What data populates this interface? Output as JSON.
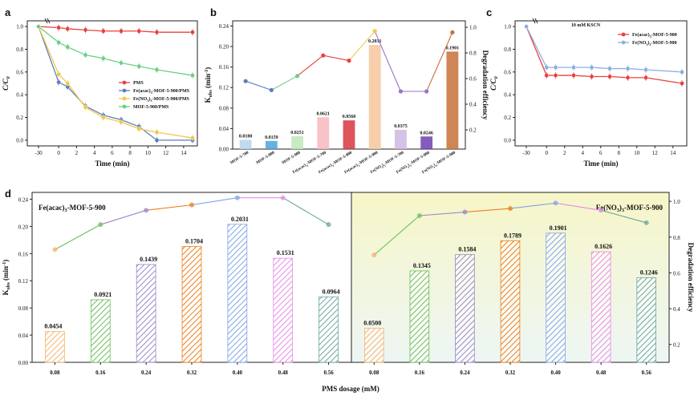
{
  "panels": {
    "a": {
      "letter": "a",
      "chart_data": {
        "type": "line",
        "xlabel": "Time (min)",
        "ylabel": "C/C0",
        "xticks": [
          "-30",
          "0",
          "2",
          "4",
          "6",
          "8",
          "10",
          "12",
          "14"
        ],
        "yticks": [
          "0.0",
          "0.2",
          "0.4",
          "0.6",
          "0.8",
          "1.0"
        ],
        "xlim": [
          -30,
          15
        ],
        "ylim": [
          -0.05,
          1.05
        ],
        "legend_position": "right-middle",
        "series": [
          {
            "name": "PMS",
            "color": "#e8413e",
            "x": [
              -30,
              0,
              1,
              3,
              5,
              7,
              9,
              11,
              15
            ],
            "y": [
              1.0,
              0.99,
              0.98,
              0.97,
              0.96,
              0.96,
              0.96,
              0.95,
              0.95
            ]
          },
          {
            "name": "Fe(acac)3-MOF-5-900/PMS",
            "color": "#5b7fbf",
            "x": [
              -30,
              0,
              1,
              3,
              5,
              7,
              9,
              11,
              15
            ],
            "y": [
              1.0,
              0.51,
              0.47,
              0.3,
              0.22,
              0.18,
              0.12,
              0.0,
              0.0
            ]
          },
          {
            "name": "Fe(NO3)3-MOF-5-900/PMS",
            "color": "#f2c84b",
            "x": [
              -30,
              0,
              1,
              3,
              5,
              7,
              9,
              11,
              15
            ],
            "y": [
              1.0,
              0.58,
              0.5,
              0.29,
              0.2,
              0.16,
              0.1,
              0.07,
              0.02
            ]
          },
          {
            "name": "MOF-5-900/PMS",
            "color": "#6ccf86",
            "x": [
              -30,
              0,
              1,
              3,
              5,
              7,
              9,
              11,
              15
            ],
            "y": [
              1.0,
              0.86,
              0.82,
              0.75,
              0.72,
              0.68,
              0.65,
              0.62,
              0.57
            ]
          }
        ]
      }
    },
    "b": {
      "letter": "b",
      "chart_data": {
        "type": "bar",
        "ylabel_left": "Kobs (min-1)",
        "ylabel_right": "Degradation efficiency",
        "yticks_left": [
          "0.00",
          "0.04",
          "0.08",
          "0.12",
          "0.16",
          "0.20",
          "0.24"
        ],
        "yticks_right": [
          "0.2",
          "0.4",
          "0.6",
          "0.8",
          "1.0"
        ],
        "ylim_left": [
          0,
          0.25
        ],
        "ylim_right": [
          0.05,
          1.05
        ],
        "categories": [
          "MOF-5-700",
          "MOF-5-800",
          "MOF-5-900",
          "Fe(acac)3-MOF-5-700",
          "Fe(acac)3-MOF-5-800",
          "Fe(acac)3-MOF-5-900",
          "Fe(NO3)3-MOF-5-700",
          "Fe(NO3)3-MOF-5-800",
          "Fe(NO3)3-MOF-5-900"
        ],
        "values": [
          0.018,
          0.0159,
          0.0251,
          0.0621,
          0.056,
          0.2031,
          0.0375,
          0.0246,
          0.1901
        ],
        "value_labels": [
          "0.0180",
          "0.0159",
          "0.0251",
          "0.0621",
          "0.0560",
          "0.2031",
          "0.0375",
          "0.0246",
          "0.1901"
        ],
        "bar_colors": [
          "#b7d3ec",
          "#4aa3d9",
          "#bfe8b9",
          "#f7b7bd",
          "#d8363e",
          "#f6c79c",
          "#cdb9e2",
          "#6e3fb0",
          "#c8703a"
        ],
        "efficiency": [
          0.58,
          0.51,
          0.62,
          0.78,
          0.74,
          0.97,
          0.5,
          0.5,
          0.96
        ],
        "efficiency_colors": [
          "#5b7fbf",
          "#5b7fbf",
          "#6ccf86",
          "#e8413e",
          "#e8413e",
          "#f2c84b",
          "#9a72c9",
          "#9a72c9",
          "#c8703a"
        ]
      }
    },
    "c": {
      "letter": "c",
      "chart_data": {
        "type": "line",
        "annotation": "10 mM KSCN",
        "xlabel": "Time (min)",
        "ylabel": "C/C0",
        "xticks": [
          "-30",
          "0",
          "2",
          "4",
          "6",
          "8",
          "10",
          "12",
          "14"
        ],
        "yticks": [
          "0.0",
          "0.2",
          "0.4",
          "0.6",
          "0.8",
          "1.0"
        ],
        "xlim": [
          -30,
          15
        ],
        "ylim": [
          -0.05,
          1.05
        ],
        "legend_position": "top-right",
        "series": [
          {
            "name": "Fe(acac)3-MOF-5-900",
            "color": "#e8413e",
            "x": [
              -30,
              0,
              1,
              3,
              5,
              7,
              9,
              11,
              15
            ],
            "y": [
              1.0,
              0.57,
              0.57,
              0.57,
              0.56,
              0.56,
              0.55,
              0.55,
              0.5
            ]
          },
          {
            "name": "Fe(NO3)3-MOF-5-900",
            "color": "#8ab0e0",
            "x": [
              -30,
              0,
              1,
              3,
              5,
              7,
              9,
              11,
              15
            ],
            "y": [
              1.0,
              0.64,
              0.64,
              0.64,
              0.64,
              0.63,
              0.63,
              0.62,
              0.6
            ]
          }
        ]
      }
    },
    "d": {
      "letter": "d",
      "chart_data": [
        {
          "type": "bar",
          "title": "Fe(acac)3-MOF-5-900",
          "categories": [
            "0.08",
            "0.16",
            "0.24",
            "0.32",
            "0.40",
            "0.48",
            "0.56"
          ],
          "values": [
            0.0454,
            0.0921,
            0.1439,
            0.1704,
            0.2031,
            0.1531,
            0.0964
          ],
          "value_labels": [
            "0.0454",
            "0.0921",
            "0.1439",
            "0.1704",
            "0.2031",
            "0.1531",
            "0.0964"
          ],
          "efficiency": [
            0.73,
            0.87,
            0.95,
            0.98,
            1.02,
            1.02,
            0.87
          ],
          "ylim": [
            0,
            0.25
          ]
        },
        {
          "type": "bar",
          "title": "Fe(NO3)3-MOF-5-900",
          "categories": [
            "0.08",
            "0.16",
            "0.24",
            "0.32",
            "0.40",
            "0.48",
            "0.56"
          ],
          "values": [
            0.05,
            0.1345,
            0.1584,
            0.1789,
            0.1901,
            0.1626,
            0.1246
          ],
          "value_labels": [
            "0.0500",
            "0.1345",
            "0.1584",
            "0.1789",
            "0.1901",
            "0.1626",
            "0.1246"
          ],
          "efficiency": [
            0.7,
            0.92,
            0.94,
            0.96,
            0.99,
            0.95,
            0.88
          ],
          "ylim_right": [
            0.1,
            1.05
          ]
        }
      ],
      "bar_colors": [
        "#f6b36b",
        "#6cbf5a",
        "#9b86c9",
        "#ef7d1a",
        "#7fa4e6",
        "#e58be6",
        "#6aa6a0"
      ],
      "ylabel_left": "Kobs (min-1)",
      "ylabel_right": "Degradation efficiency",
      "xlabel": "PMS dosage (mM)",
      "yticks_left": [
        "0.00",
        "0.04",
        "0.08",
        "0.12",
        "0.16",
        "0.20",
        "0.24"
      ],
      "yticks_right": [
        "0.2",
        "0.4",
        "0.6",
        "0.8",
        "1.0"
      ]
    }
  }
}
